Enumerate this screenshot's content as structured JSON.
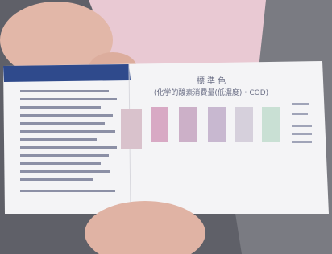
{
  "card": {
    "title": "標 準 色",
    "subtitle": "(化学的酸素消費量(低濃度)・COD)"
  }
}
